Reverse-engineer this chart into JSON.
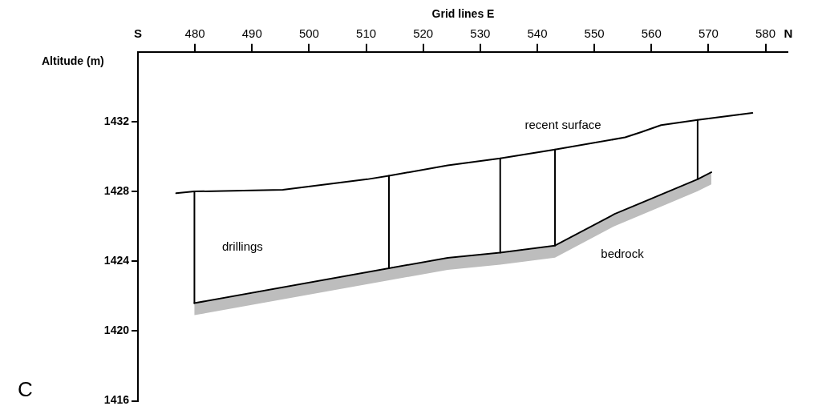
{
  "chart_data": {
    "type": "line",
    "xlabel": "Grid lines E",
    "ylabel": "Altitude (m)",
    "xlim": [
      470,
      584
    ],
    "xticks": [
      {
        "value": 470,
        "label": "S"
      },
      480,
      490,
      500,
      510,
      520,
      530,
      540,
      550,
      560,
      570,
      580,
      {
        "value": 584,
        "label": "N"
      }
    ],
    "ylim": [
      1416,
      1436
    ],
    "yticks": [
      1416,
      1420,
      1424,
      1428,
      1432
    ],
    "grid": false,
    "marker": "none",
    "series": [
      {
        "name": "recent surface",
        "color": "#000000",
        "x": [
          476.7,
          479.9,
          495.4,
          510.2,
          514.0,
          524.3,
          533.5,
          543.1,
          555.4,
          558.2,
          561.7,
          568.1,
          577.7
        ],
        "values": [
          1427.9,
          1428.0,
          1428.1,
          1428.7,
          1428.9,
          1429.5,
          1429.9,
          1430.4,
          1431.1,
          1431.4,
          1431.8,
          1432.1,
          1432.5
        ]
      },
      {
        "name": "bedrock",
        "color": "#000000",
        "x": [
          479.9,
          514.0,
          524.3,
          533.5,
          543.1,
          553.5,
          568.1,
          570.5
        ],
        "values": [
          1421.6,
          1423.6,
          1424.2,
          1424.5,
          1424.9,
          1426.7,
          1428.7,
          1429.1
        ]
      },
      {
        "name": "drillings",
        "color": "#000000",
        "x": [
          479.9,
          479.9
        ],
        "values": [
          1428.0,
          1421.6
        ]
      },
      {
        "color": "#000000",
        "x": [
          514.0,
          514.0
        ],
        "values": [
          1428.9,
          1423.6
        ]
      },
      {
        "color": "#000000",
        "x": [
          533.5,
          533.5
        ],
        "values": [
          1429.9,
          1424.5
        ]
      },
      {
        "color": "#000000",
        "x": [
          543.1,
          543.1
        ],
        "values": [
          1430.4,
          1424.9
        ]
      },
      {
        "color": "#000000",
        "x": [
          568.1,
          568.1
        ],
        "values": [
          1432.1,
          1428.7
        ]
      }
    ],
    "annotations": [
      "C"
    ]
  }
}
